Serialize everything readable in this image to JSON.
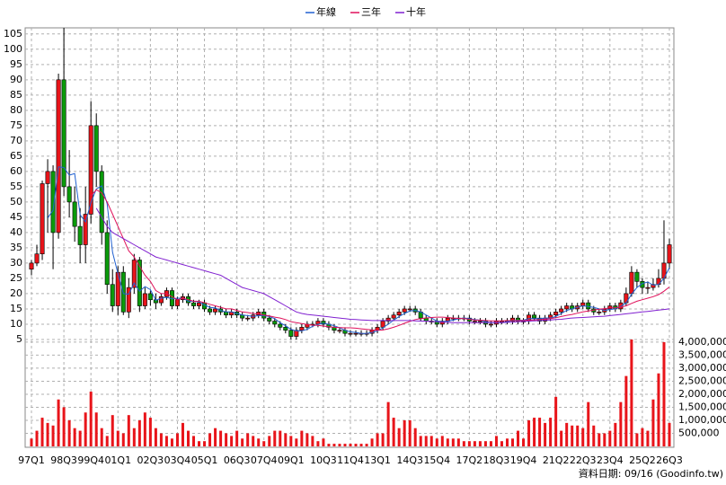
{
  "chart_data": {
    "type": "candlestick",
    "categories": [
      "97Q1",
      null,
      null,
      null,
      null,
      null,
      "98Q3",
      null,
      null,
      null,
      null,
      "99Q4",
      null,
      null,
      null,
      null,
      "01Q1",
      null,
      null,
      null,
      null,
      null,
      "02Q3",
      null,
      null,
      null,
      null,
      "03Q4",
      null,
      null,
      null,
      null,
      "05Q1",
      null,
      null,
      null,
      null,
      null,
      "06Q3",
      null,
      null,
      null,
      null,
      "07Q4",
      null,
      null,
      null,
      null,
      "09Q1",
      null,
      null,
      null,
      null,
      null,
      "10Q3",
      null,
      null,
      null,
      null,
      "11Q4",
      null,
      null,
      null,
      null,
      "13Q1",
      null,
      null,
      null,
      null,
      null,
      "14Q3",
      null,
      null,
      null,
      null,
      "15Q4",
      null,
      null,
      null,
      null,
      null,
      "17Q2",
      null,
      null,
      null,
      null,
      "18Q3",
      null,
      null,
      null,
      null,
      "19Q4",
      null,
      null,
      null,
      null,
      null,
      "21Q2",
      null,
      null,
      null,
      null,
      "22Q3",
      null,
      null,
      null,
      null,
      "23Q4",
      null,
      null,
      null,
      null,
      null,
      "25Q2",
      null,
      null,
      null,
      null,
      "26Q3"
    ],
    "open": [
      28,
      30,
      33,
      56,
      60,
      40,
      90,
      55,
      50,
      42,
      36,
      46,
      75,
      60,
      40,
      23,
      16,
      27,
      14,
      22,
      31,
      16,
      20,
      18,
      17,
      19,
      21,
      16,
      18,
      19,
      17,
      16,
      17,
      15,
      14,
      15,
      14,
      13,
      14,
      13,
      12,
      12,
      13,
      14,
      12,
      11,
      10,
      9,
      8,
      6,
      8,
      9,
      10,
      10,
      11,
      10,
      9,
      8,
      8,
      7,
      7,
      7,
      7,
      7,
      8,
      9,
      11,
      12,
      13,
      14,
      15,
      15,
      14,
      12,
      11,
      11,
      10,
      11,
      12,
      12,
      12,
      12,
      11,
      11,
      11,
      10,
      10,
      11,
      11,
      11,
      12,
      11,
      11,
      13,
      12,
      11,
      12,
      13,
      14,
      15,
      16,
      15,
      16,
      17,
      15,
      14,
      14,
      15,
      16,
      15,
      17,
      20,
      27,
      24,
      22,
      22,
      23,
      25,
      30
    ],
    "high": [
      31,
      36,
      57,
      64,
      62,
      92,
      107,
      67,
      55,
      48,
      55,
      83,
      79,
      62,
      44,
      28,
      29,
      29,
      25,
      33,
      32,
      22,
      21,
      20,
      20,
      22,
      22,
      19,
      20,
      20,
      18,
      18,
      18,
      16,
      16,
      16,
      15,
      15,
      15,
      14,
      13,
      14,
      15,
      15,
      13,
      12,
      11,
      10,
      9,
      9,
      10,
      11,
      11,
      12,
      12,
      11,
      10,
      9,
      9,
      8,
      8,
      8,
      8,
      9,
      10,
      12,
      13,
      14,
      15,
      16,
      16,
      16,
      15,
      13,
      12,
      12,
      12,
      13,
      13,
      13,
      13,
      13,
      12,
      12,
      12,
      11,
      12,
      12,
      12,
      13,
      13,
      12,
      14,
      14,
      13,
      13,
      14,
      15,
      16,
      17,
      17,
      17,
      18,
      18,
      16,
      15,
      16,
      17,
      17,
      18,
      22,
      29,
      28,
      25,
      24,
      25,
      28,
      44,
      38
    ],
    "low": [
      26,
      29,
      31,
      40,
      28,
      38,
      52,
      45,
      37,
      30,
      30,
      43,
      55,
      36,
      20,
      14,
      13,
      13,
      12,
      20,
      14,
      15,
      16,
      15,
      16,
      18,
      15,
      15,
      17,
      16,
      15,
      15,
      14,
      13,
      13,
      13,
      12,
      12,
      12,
      11,
      11,
      11,
      12,
      11,
      10,
      9,
      8,
      7,
      5,
      5,
      7,
      8,
      9,
      9,
      9,
      8,
      7,
      7,
      6,
      6,
      6,
      6,
      6,
      6,
      7,
      8,
      10,
      11,
      12,
      13,
      14,
      13,
      11,
      10,
      10,
      9,
      9,
      10,
      11,
      11,
      11,
      10,
      10,
      10,
      9,
      9,
      9,
      10,
      10,
      10,
      10,
      10,
      10,
      11,
      10,
      10,
      11,
      12,
      13,
      14,
      14,
      14,
      15,
      14,
      13,
      13,
      13,
      14,
      14,
      14,
      16,
      19,
      22,
      20,
      20,
      21,
      22,
      23,
      28
    ],
    "close": [
      30,
      33,
      56,
      60,
      40,
      90,
      55,
      50,
      42,
      36,
      46,
      75,
      60,
      40,
      23,
      16,
      27,
      14,
      22,
      31,
      16,
      20,
      18,
      17,
      19,
      21,
      16,
      18,
      19,
      17,
      16,
      17,
      15,
      14,
      15,
      14,
      13,
      14,
      13,
      12,
      12,
      13,
      14,
      12,
      11,
      10,
      9,
      8,
      6,
      8,
      9,
      10,
      10,
      11,
      10,
      9,
      8,
      8,
      7,
      7,
      7,
      7,
      7,
      8,
      9,
      11,
      12,
      13,
      14,
      15,
      15,
      14,
      12,
      11,
      11,
      10,
      11,
      12,
      12,
      12,
      12,
      11,
      11,
      11,
      10,
      10,
      11,
      11,
      11,
      12,
      11,
      11,
      13,
      12,
      11,
      12,
      13,
      14,
      15,
      16,
      15,
      16,
      17,
      15,
      14,
      14,
      15,
      16,
      15,
      17,
      20,
      27,
      24,
      22,
      22,
      23,
      25,
      30,
      36
    ],
    "up_color": "#e8141a",
    "down_color": "#0a9a0a",
    "series": [
      {
        "name": "年線",
        "color": "#2060d0",
        "values": [
          null,
          null,
          null,
          44.8,
          47.3,
          61.5,
          61.3,
          58.8,
          59.3,
          45.8,
          43.5,
          49.8,
          54.3,
          55.3,
          49.5,
          33.5,
          26.5,
          20,
          19.8,
          23.5,
          20.8,
          22.3,
          21.3,
          17.8,
          18.5,
          18.8,
          18.3,
          18.5,
          18.5,
          17.5,
          17.5,
          17.3,
          16.3,
          15.5,
          15.3,
          14.5,
          14,
          14,
          13.5,
          13,
          12.8,
          12.5,
          12.8,
          12.8,
          12.5,
          11.8,
          10.5,
          9.5,
          8.3,
          7.8,
          7.8,
          8.3,
          9.3,
          10,
          10.3,
          10,
          9.5,
          8.8,
          8,
          7.5,
          7.3,
          7,
          7,
          7.3,
          7.8,
          8.8,
          10,
          11.3,
          12.5,
          13.5,
          14.3,
          14.5,
          14,
          13,
          12,
          11,
          10.8,
          11,
          11.3,
          11.8,
          12,
          11.8,
          11.5,
          11.3,
          10.8,
          10.5,
          10.5,
          10.5,
          10.8,
          11.3,
          11.3,
          11.3,
          11.8,
          11.8,
          11.8,
          12,
          12,
          12.5,
          13.5,
          14.5,
          15,
          15.5,
          16,
          15.8,
          15.5,
          15,
          14.5,
          14.8,
          15,
          15.8,
          17,
          19.8,
          22,
          23.3,
          23.8,
          22.8,
          23,
          25,
          28.5
        ]
      },
      {
        "name": "三年",
        "color": "#e0105a",
        "values": [
          null,
          null,
          null,
          null,
          null,
          null,
          null,
          null,
          null,
          null,
          null,
          52,
          54,
          53,
          50,
          46,
          42,
          38,
          34,
          32,
          29,
          26,
          24,
          21,
          20,
          20,
          19,
          18,
          18.5,
          18,
          17.5,
          17.5,
          17,
          16.5,
          16,
          15.5,
          15,
          15,
          14.5,
          14,
          13.8,
          13.5,
          13.3,
          13,
          12.7,
          12.3,
          12,
          11.5,
          10.8,
          10.5,
          10.2,
          9.9,
          9.7,
          9.6,
          9.4,
          9.2,
          9,
          8.9,
          8.8,
          8.8,
          8.7,
          8.5,
          8.3,
          8.1,
          8,
          8.1,
          8.5,
          9,
          9.6,
          10.3,
          10.9,
          11.5,
          11.8,
          12,
          12.2,
          12.3,
          12.3,
          12.2,
          12,
          11.9,
          11.8,
          11.6,
          11.4,
          11.3,
          11.2,
          11.1,
          11.1,
          11.1,
          11.2,
          11.2,
          11.2,
          11.2,
          11.3,
          11.4,
          11.5,
          11.6,
          11.8,
          12.1,
          12.5,
          12.9,
          13.2,
          13.6,
          14,
          14.3,
          14.6,
          14.9,
          15.1,
          15.3,
          15.4,
          15.6,
          16,
          16.8,
          17.5,
          18,
          18.5,
          19,
          19.7,
          20.8,
          22.2
        ]
      },
      {
        "name": "十年",
        "color": "#8020d0",
        "values": [
          null,
          null,
          null,
          null,
          null,
          null,
          null,
          null,
          null,
          null,
          null,
          null,
          48,
          45,
          42,
          40,
          39,
          38,
          37,
          36,
          35,
          34,
          33,
          32,
          31.5,
          31,
          30.5,
          30,
          29.5,
          29,
          28.5,
          28,
          27.5,
          27,
          26.5,
          26,
          25,
          24,
          23,
          22,
          21.5,
          21,
          20.5,
          20,
          19,
          18,
          17,
          16,
          15,
          14,
          13.5,
          13.2,
          13,
          12.8,
          12.6,
          12.4,
          12.2,
          12,
          11.8,
          11.6,
          11.5,
          11.4,
          11.3,
          11.2,
          11.2,
          11.2,
          11.2,
          11.2,
          11.2,
          11.2,
          11.2,
          11.1,
          11,
          11,
          10.9,
          10.8,
          10.7,
          10.6,
          10.5,
          10.5,
          10.5,
          10.5,
          10.5,
          10.5,
          10.5,
          10.5,
          10.5,
          10.5,
          10.6,
          10.7,
          10.8,
          10.9,
          11,
          11.1,
          11.2,
          11.3,
          11.4,
          11.5,
          11.6,
          11.8,
          12,
          12.1,
          12.2,
          12.3,
          12.4,
          12.5,
          12.6,
          12.8,
          13,
          13.2,
          13.4,
          13.6,
          13.8,
          14,
          14.2,
          14.4,
          14.6,
          14.8,
          15
        ]
      }
    ],
    "volume": {
      "color": "#e8141a",
      "values": [
        300000,
        600000,
        1100000,
        900000,
        800000,
        1800000,
        1500000,
        1000000,
        700000,
        600000,
        1300000,
        2100000,
        1300000,
        700000,
        400000,
        1200000,
        600000,
        500000,
        1200000,
        700000,
        1000000,
        1300000,
        1100000,
        700000,
        500000,
        400000,
        300000,
        500000,
        900000,
        600000,
        400000,
        200000,
        200000,
        500000,
        700000,
        600000,
        500000,
        400000,
        600000,
        300000,
        500000,
        400000,
        300000,
        200000,
        400000,
        600000,
        600000,
        500000,
        400000,
        300000,
        600000,
        500000,
        400000,
        200000,
        300000,
        100000,
        100000,
        100000,
        100000,
        100000,
        100000,
        100000,
        100000,
        300000,
        500000,
        500000,
        1700000,
        1100000,
        700000,
        1000000,
        1000000,
        700000,
        400000,
        400000,
        400000,
        300000,
        400000,
        300000,
        300000,
        300000,
        200000,
        200000,
        200000,
        200000,
        200000,
        200000,
        400000,
        200000,
        300000,
        300000,
        600000,
        300000,
        1000000,
        1100000,
        1100000,
        900000,
        1100000,
        1900000,
        600000,
        900000,
        800000,
        800000,
        700000,
        1700000,
        800000,
        500000,
        500000,
        600000,
        900000,
        1700000,
        2700000,
        4100000,
        500000,
        700000,
        600000,
        1800000,
        2800000,
        4000000,
        900000
      ]
    },
    "ylim": [
      4.4,
      107
    ],
    "yticks": [
      5,
      10,
      15,
      20,
      25,
      30,
      35,
      40,
      45,
      50,
      55,
      60,
      65,
      70,
      75,
      80,
      85,
      90,
      95,
      100,
      105
    ],
    "y2lim": [
      0,
      4100000
    ],
    "y2ticks": [
      {
        "value": 500000,
        "label": "500,000"
      },
      {
        "value": 1000000,
        "label": "1,000,000"
      },
      {
        "value": 1500000,
        "label": "1,500,000"
      },
      {
        "value": 2000000,
        "label": "2,000,000"
      },
      {
        "value": 2500000,
        "label": "2,500,000"
      },
      {
        "value": 3000000,
        "label": "3,000,000"
      },
      {
        "value": 3500000,
        "label": "3,500,000"
      },
      {
        "value": 4000000,
        "label": "4,000,000"
      }
    ],
    "grid": true,
    "footnote": "資料日期: 09/16 (Goodinfo.tw)"
  }
}
